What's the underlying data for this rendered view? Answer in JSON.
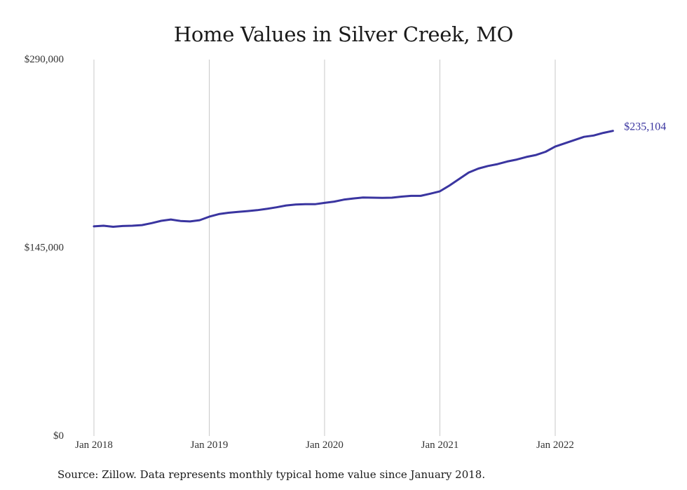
{
  "chart_data": {
    "type": "line",
    "title": "Home Values in Silver Creek, MO",
    "xlabel": "",
    "ylabel": "",
    "ylim": [
      0,
      290000
    ],
    "xlim": [
      "2018-01",
      "2022-07"
    ],
    "y_ticks": [
      0,
      145000,
      290000
    ],
    "y_tick_labels": [
      "$0",
      "$145,000",
      "$290,000"
    ],
    "x_ticks": [
      "2018-01",
      "2019-01",
      "2020-01",
      "2021-01",
      "2022-01"
    ],
    "x_tick_labels": [
      "Jan 2018",
      "Jan 2019",
      "Jan 2020",
      "Jan 2021",
      "Jan 2022"
    ],
    "grid": "vertical",
    "end_label": "$235,104",
    "line_color": "#3a35a0",
    "series": [
      {
        "x": [
          "2018-01",
          "2018-02",
          "2018-03",
          "2018-04",
          "2018-05",
          "2018-06",
          "2018-07",
          "2018-08",
          "2018-09",
          "2018-10",
          "2018-11",
          "2018-12",
          "2019-01",
          "2019-02",
          "2019-03",
          "2019-04",
          "2019-05",
          "2019-06",
          "2019-07",
          "2019-08",
          "2019-09",
          "2019-10",
          "2019-11",
          "2019-12",
          "2020-01",
          "2020-02",
          "2020-03",
          "2020-04",
          "2020-05",
          "2020-06",
          "2020-07",
          "2020-08",
          "2020-09",
          "2020-10",
          "2020-11",
          "2020-12",
          "2021-01",
          "2021-02",
          "2021-03",
          "2021-04",
          "2021-05",
          "2021-06",
          "2021-07",
          "2021-08",
          "2021-09",
          "2021-10",
          "2021-11",
          "2021-12",
          "2022-01",
          "2022-02",
          "2022-03",
          "2022-04",
          "2022-05",
          "2022-06",
          "2022-07"
        ],
        "values": [
          161500,
          162000,
          161200,
          161800,
          162000,
          162500,
          164000,
          165800,
          166800,
          165700,
          165300,
          166300,
          169000,
          171000,
          172000,
          172700,
          173300,
          174000,
          175000,
          176200,
          177600,
          178300,
          178600,
          178600,
          179600,
          180600,
          182100,
          183000,
          183800,
          183600,
          183500,
          183600,
          184400,
          185000,
          185000,
          186700,
          188500,
          193000,
          198000,
          203000,
          206000,
          208000,
          209500,
          211500,
          213000,
          215000,
          216500,
          219000,
          223000,
          225500,
          228000,
          230500,
          231500,
          233500,
          235104
        ]
      }
    ]
  },
  "source_note": "Source: Zillow. Data represents monthly typical home value since January 2018."
}
